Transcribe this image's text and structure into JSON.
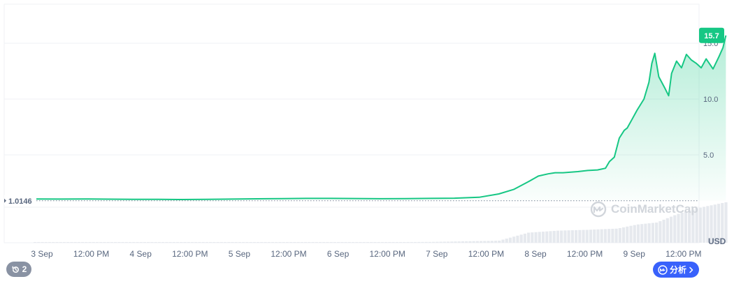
{
  "chart_data": {
    "type": "area",
    "currency": "USD",
    "x_labels": [
      "3 Sep",
      "12:00 PM",
      "4 Sep",
      "12:00 PM",
      "5 Sep",
      "12:00 PM",
      "6 Sep",
      "12:00 PM",
      "7 Sep",
      "12:00 PM",
      "8 Sep",
      "12:00 PM",
      "9 Sep",
      "12:00 PM"
    ],
    "y_ticks": [
      5.0,
      10.0,
      15.0
    ],
    "y_tick_labels": [
      "5.0",
      "10.0",
      "15.0"
    ],
    "ylim": [
      0,
      18.5
    ],
    "x_range_days": [
      0,
      7.0
    ],
    "baseline_value": 1.0146,
    "baseline_label": "1.0146",
    "current_value": 15.7,
    "current_label": "15.7",
    "colors": {
      "line": "#16c784",
      "fill": "#16c784",
      "badge": "#16c784"
    },
    "series": [
      {
        "x": [
          0,
          0.25,
          0.5,
          0.75,
          1,
          1.25,
          1.5,
          1.75,
          2,
          2.25,
          2.5,
          2.75,
          3,
          3.25,
          3.5,
          3.75,
          4,
          4.25,
          4.5,
          4.7,
          4.85,
          5.0,
          5.1,
          5.2,
          5.27,
          5.35,
          5.5,
          5.6,
          5.7,
          5.78,
          5.82,
          5.87,
          5.92,
          5.97,
          6.0,
          6.05,
          6.1,
          6.17,
          6.22,
          6.25,
          6.28,
          6.32,
          6.38,
          6.42,
          6.45,
          6.5,
          6.55,
          6.6,
          6.65,
          6.7,
          6.75,
          6.8,
          6.87,
          6.93,
          6.97,
          7.0
        ],
        "values": [
          1.05,
          1.04,
          1.05,
          1.03,
          1.02,
          1.01,
          1.0,
          1.02,
          1.04,
          1.06,
          1.08,
          1.1,
          1.1,
          1.09,
          1.07,
          1.08,
          1.1,
          1.12,
          1.2,
          1.5,
          1.9,
          2.6,
          3.1,
          3.3,
          3.4,
          3.4,
          3.5,
          3.6,
          3.65,
          3.8,
          4.4,
          4.8,
          6.5,
          7.2,
          7.4,
          8.2,
          9.0,
          10.0,
          11.5,
          13.2,
          14.1,
          12.0,
          11.0,
          10.3,
          12.3,
          13.4,
          12.8,
          14.0,
          13.5,
          13.2,
          12.8,
          13.6,
          12.7,
          13.8,
          14.6,
          15.7
        ]
      }
    ],
    "volume": {
      "x": [
        0,
        1,
        2,
        3,
        4,
        4.7,
        5.0,
        5.3,
        5.6,
        5.9,
        6.1,
        6.3,
        6.5,
        6.7,
        6.9,
        7.0
      ],
      "values": [
        0.01,
        0.01,
        0.01,
        0.01,
        0.02,
        0.05,
        0.25,
        0.3,
        0.32,
        0.35,
        0.45,
        0.5,
        0.7,
        0.85,
        0.95,
        1.0
      ]
    }
  },
  "watermark": {
    "text": "CoinMarketCap"
  },
  "controls": {
    "history_count": "2",
    "analyze_label": "分析"
  }
}
